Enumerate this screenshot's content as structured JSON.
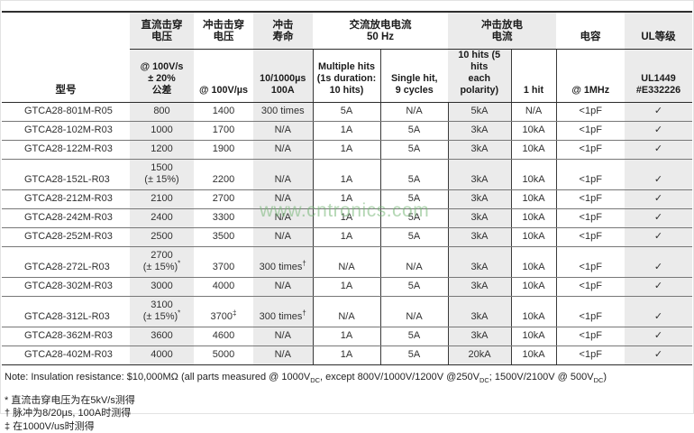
{
  "colors": {
    "column_shade": "#ebebeb",
    "border_dark": "#2f2f2f",
    "row_line": "#777777",
    "watermark_green": "#76b676"
  },
  "watermark": {
    "text": "www.cntronics.com"
  },
  "table": {
    "header": {
      "model": "型号",
      "dc_group": "直流击穿\n电压",
      "dc_sub": "@ 100V/s\n± 20%\n公差",
      "impulse_group": "冲击击穿\n电压",
      "impulse_sub": "@ 100V/µs",
      "life_group": "冲击\n寿命",
      "life_sub": "10/1000µs\n100A",
      "ac_group": "交流放电电流\n50 Hz",
      "ac_sub_multiple": "Multiple hits\n(1s duration:\n10 hits)",
      "ac_sub_single": "Single hit,\n9 cycles",
      "surge_group": "冲击放电\n电流",
      "surge_sub_10hits": "10 hits (5 hits\neach polarity)",
      "surge_sub_1hit": "1 hit",
      "cap_group": "电容",
      "cap_sub": "@ 1MHz",
      "ul_group": "UL等级",
      "ul_sub": "UL1449\n#E332226"
    },
    "cell_names": [
      "model-cell",
      "dc-breakdown-cell",
      "impulse-breakdown-cell",
      "impulse-life-cell",
      "ac-multiple-hits-cell",
      "ac-single-hit-cell",
      "surge-10hits-cell",
      "surge-1hit-cell",
      "capacitance-cell",
      "ul-check-cell"
    ],
    "rows": [
      [
        "GTCA28-801M-R05",
        "800",
        "1400",
        "300 times",
        "5A",
        "N/A",
        "5kA",
        "N/A",
        "<1pF",
        "✓"
      ],
      [
        "GTCA28-102M-R03",
        "1000",
        "1700",
        "N/A",
        "1A",
        "5A",
        "3kA",
        "10kA",
        "<1pF",
        "✓"
      ],
      [
        "GTCA28-122M-R03",
        "1200",
        "1900",
        "N/A",
        "1A",
        "5A",
        "3kA",
        "10kA",
        "<1pF",
        "✓"
      ],
      [
        "GTCA28-152L-R03",
        "1500\n(± 15%)",
        "2200",
        "N/A",
        "1A",
        "5A",
        "3kA",
        "10kA",
        "<1pF",
        "✓"
      ],
      [
        "GTCA28-212M-R03",
        "2100",
        "2700",
        "N/A",
        "1A",
        "5A",
        "3kA",
        "10kA",
        "<1pF",
        "✓"
      ],
      [
        "GTCA28-242M-R03",
        "2400",
        "3300",
        "N/A",
        "1A",
        "5A",
        "3kA",
        "10kA",
        "<1pF",
        "✓"
      ],
      [
        "GTCA28-252M-R03",
        "2500",
        "3500",
        "N/A",
        "1A",
        "5A",
        "3kA",
        "10kA",
        "<1pF",
        "✓"
      ],
      [
        "GTCA28-272L-R03",
        "2700\n(± 15%)*",
        "3700",
        "300 times†",
        "N/A",
        "N/A",
        "3kA",
        "10kA",
        "<1pF",
        "✓"
      ],
      [
        "GTCA28-302M-R03",
        "3000",
        "4000",
        "N/A",
        "1A",
        "5A",
        "3kA",
        "10kA",
        "<1pF",
        "✓"
      ],
      [
        "GTCA28-312L-R03",
        "3100\n(± 15%)*",
        "3700‡",
        "300 times†",
        "N/A",
        "N/A",
        "3kA",
        "10kA",
        "<1pF",
        "✓"
      ],
      [
        "GTCA28-362M-R03",
        "3600",
        "4600",
        "N/A",
        "1A",
        "5A",
        "3kA",
        "10kA",
        "<1pF",
        "✓"
      ],
      [
        "GTCA28-402M-R03",
        "4000",
        "5000",
        "N/A",
        "1A",
        "5A",
        "20kA",
        "10kA",
        "<1pF",
        "✓"
      ]
    ]
  },
  "note": {
    "p1": "Note: Insulation resistance: $10,000MΩ (all parts measured @ 1000V",
    "s1": "DC",
    "p2": ", except 800V/1000V/1200V @250V",
    "s2": "DC",
    "p3": "; 1500V/2100V @ 500V",
    "s3": "DC",
    "p4": ")"
  },
  "footnotes": [
    "* 直流击穿电压为在5kV/s测得",
    "† 脉冲为8/20µs, 100A时测得",
    "‡ 在1000V/us时测得"
  ]
}
